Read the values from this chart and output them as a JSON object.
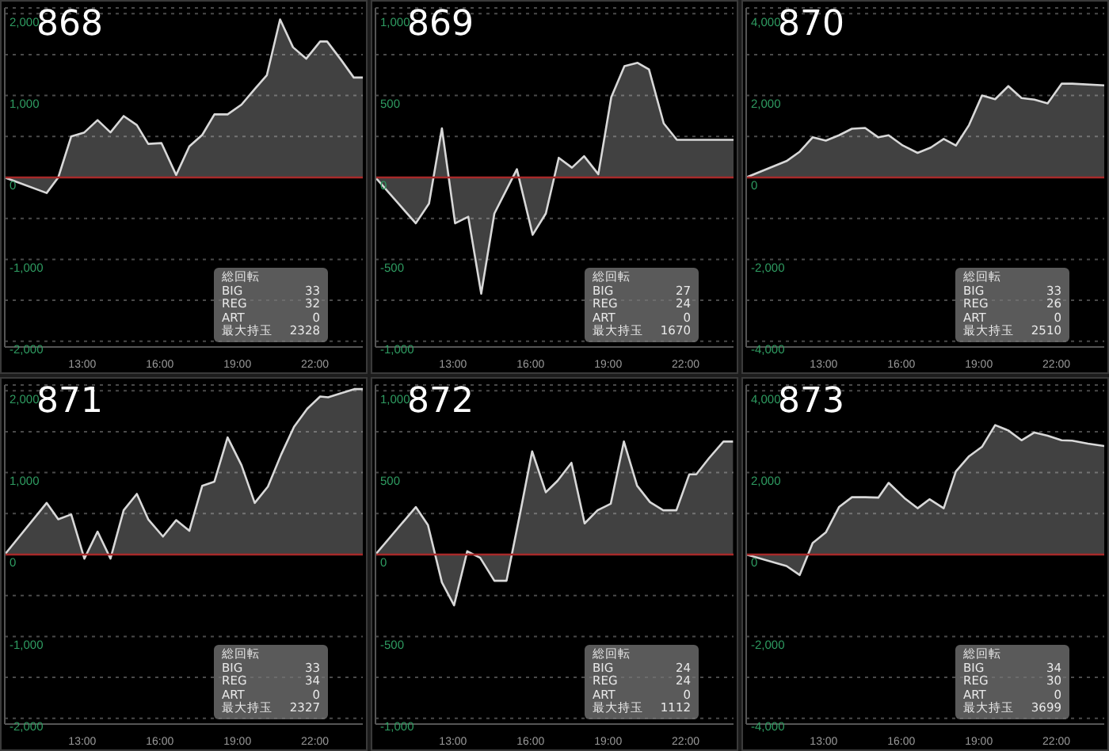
{
  "chart_data": [
    {
      "type": "area",
      "title": "868",
      "color": "#d8d8d8",
      "x": [
        10,
        11.62,
        12.07,
        12.57,
        13.08,
        13.59,
        14.09,
        14.6,
        15.11,
        15.55,
        16.06,
        16.63,
        17.14,
        17.64,
        18.11,
        18.62,
        19.16,
        19.67,
        20.14,
        20.65,
        21.15,
        21.66,
        22.2,
        22.47,
        23.0,
        23.5,
        23.85
      ],
      "values": [
        0,
        -190,
        0,
        500,
        550,
        700,
        550,
        750,
        640,
        410,
        420,
        30,
        380,
        520,
        770,
        770,
        890,
        1080,
        1250,
        1930,
        1590,
        1450,
        1660,
        1660,
        1440,
        1220,
        1220
      ],
      "xlim": [
        10,
        23.85
      ],
      "xticks": [
        {
          "value": 13,
          "label": "13:00"
        },
        {
          "value": 16,
          "label": "16:00"
        },
        {
          "value": 19,
          "label": "19:00"
        },
        {
          "value": 22,
          "label": "22:00"
        }
      ],
      "ylim": [
        -2070,
        2070
      ],
      "yticks": [
        {
          "value": 2000,
          "label": "2,000"
        },
        {
          "value": 1500,
          "label": null
        },
        {
          "value": 1000,
          "label": "1,000"
        },
        {
          "value": 500,
          "label": null
        },
        0,
        {
          "value": -500,
          "label": null
        },
        {
          "value": -1000,
          "label": "-1,000"
        },
        {
          "value": -1500,
          "label": null
        },
        {
          "value": -2000,
          "label": "-2,000"
        }
      ],
      "grid": "y",
      "ref_lines": [
        {
          "axis": "y",
          "value": 0,
          "color": "#a82a2a"
        }
      ],
      "annotations": [
        "総回転",
        "BIG 33",
        "REG 32",
        "ART 0",
        "最大持玉 2328"
      ]
    },
    {
      "type": "area",
      "title": "869",
      "color": "#d8d8d8",
      "x": [
        10,
        11.56,
        12.07,
        12.57,
        13.08,
        13.59,
        14.09,
        14.6,
        15.47,
        16.08,
        16.59,
        17.09,
        17.6,
        18.07,
        18.62,
        19.12,
        19.63,
        20.14,
        20.58,
        21.15,
        21.66,
        23.85
      ],
      "values": [
        0,
        -280,
        -160,
        300,
        -280,
        -240,
        -710,
        -220,
        50,
        -350,
        -220,
        120,
        60,
        130,
        20,
        490,
        680,
        700,
        660,
        330,
        230,
        230
      ],
      "xlim": [
        10,
        23.85
      ],
      "xticks": [
        {
          "value": 13,
          "label": "13:00"
        },
        {
          "value": 16,
          "label": "16:00"
        },
        {
          "value": 19,
          "label": "19:00"
        },
        {
          "value": 22,
          "label": "22:00"
        }
      ],
      "ylim": [
        -1035,
        1035
      ],
      "yticks": [
        {
          "value": 1000,
          "label": "1,000"
        },
        {
          "value": 750,
          "label": null
        },
        500,
        {
          "value": 250,
          "label": null
        },
        0,
        {
          "value": -250,
          "label": null
        },
        -500,
        {
          "value": -750,
          "label": null
        },
        {
          "value": -1000,
          "label": "-1,000"
        }
      ],
      "grid": "y",
      "ref_lines": [
        {
          "axis": "y",
          "value": 0,
          "color": "#a82a2a"
        }
      ],
      "annotations": [
        "総回転",
        "BIG 27",
        "REG 24",
        "ART 0",
        "最大持玉 1670"
      ]
    },
    {
      "type": "area",
      "title": "870",
      "color": "#d8d8d8",
      "x": [
        10,
        11.56,
        12.07,
        12.57,
        13.08,
        13.59,
        14.09,
        14.6,
        15.11,
        15.51,
        16.06,
        16.63,
        17.14,
        17.64,
        18.11,
        18.62,
        19.12,
        19.63,
        20.14,
        20.65,
        21.15,
        21.66,
        22.2,
        22.61,
        23.85
      ],
      "values": [
        0,
        400,
        630,
        980,
        900,
        1030,
        1190,
        1210,
        980,
        1030,
        780,
        600,
        730,
        940,
        780,
        1280,
        2000,
        1910,
        2230,
        1940,
        1900,
        1810,
        2290,
        2290,
        2250
      ],
      "xlim": [
        10,
        23.85
      ],
      "xticks": [
        {
          "value": 13,
          "label": "13:00"
        },
        {
          "value": 16,
          "label": "16:00"
        },
        {
          "value": 19,
          "label": "19:00"
        },
        {
          "value": 22,
          "label": "22:00"
        }
      ],
      "ylim": [
        -4140,
        4140
      ],
      "yticks": [
        {
          "value": 4000,
          "label": "4,000"
        },
        {
          "value": 3000,
          "label": null
        },
        {
          "value": 2000,
          "label": "2,000"
        },
        {
          "value": 1000,
          "label": null
        },
        0,
        {
          "value": -1000,
          "label": null
        },
        {
          "value": -2000,
          "label": "-2,000"
        },
        {
          "value": -3000,
          "label": null
        },
        {
          "value": -4000,
          "label": "-4,000"
        }
      ],
      "grid": "y",
      "ref_lines": [
        {
          "axis": "y",
          "value": 0,
          "color": "#a82a2a"
        }
      ],
      "annotations": [
        "総回転",
        "BIG 33",
        "REG 26",
        "ART 0",
        "最大持玉 2510"
      ]
    },
    {
      "type": "area",
      "title": "871",
      "color": "#d8d8d8",
      "x": [
        10,
        11.62,
        12.07,
        12.57,
        13.08,
        13.59,
        14.09,
        14.6,
        15.11,
        15.55,
        16.12,
        16.63,
        17.14,
        17.64,
        18.11,
        18.62,
        19.16,
        19.67,
        20.18,
        20.69,
        21.19,
        21.7,
        22.2,
        22.51,
        23.02,
        23.52,
        23.85
      ],
      "values": [
        0,
        630,
        430,
        490,
        -50,
        280,
        -50,
        540,
        740,
        430,
        220,
        420,
        290,
        840,
        890,
        1430,
        1090,
        630,
        830,
        1220,
        1560,
        1780,
        1930,
        1920,
        1970,
        2020,
        2020
      ],
      "xlim": [
        10,
        23.85
      ],
      "xticks": [
        {
          "value": 13,
          "label": "13:00"
        },
        {
          "value": 16,
          "label": "16:00"
        },
        {
          "value": 19,
          "label": "19:00"
        },
        {
          "value": 22,
          "label": "22:00"
        }
      ],
      "ylim": [
        -2070,
        2070
      ],
      "yticks": [
        {
          "value": 2000,
          "label": "2,000"
        },
        {
          "value": 1500,
          "label": null
        },
        {
          "value": 1000,
          "label": "1,000"
        },
        {
          "value": 500,
          "label": null
        },
        0,
        {
          "value": -500,
          "label": null
        },
        {
          "value": -1000,
          "label": "-1,000"
        },
        {
          "value": -1500,
          "label": null
        },
        {
          "value": -2000,
          "label": "-2,000"
        }
      ],
      "grid": "y",
      "ref_lines": [
        {
          "axis": "y",
          "value": 0,
          "color": "#a82a2a"
        }
      ],
      "annotations": [
        "総回転",
        "BIG 33",
        "REG 34",
        "ART 0",
        "最大持玉 2327"
      ]
    },
    {
      "type": "area",
      "title": "872",
      "color": "#d8d8d8",
      "x": [
        10,
        11.56,
        12.03,
        12.57,
        13.04,
        13.55,
        14.05,
        14.6,
        15.07,
        15.58,
        16.06,
        16.59,
        17.04,
        17.58,
        18.09,
        18.59,
        19.1,
        19.61,
        20.12,
        20.62,
        21.13,
        21.64,
        22.14,
        22.41,
        22.91,
        23.46,
        23.83
      ],
      "values": [
        0,
        290,
        180,
        -170,
        -310,
        20,
        -20,
        -160,
        -160,
        240,
        630,
        380,
        450,
        560,
        190,
        270,
        310,
        690,
        420,
        320,
        270,
        270,
        490,
        490,
        590,
        690,
        690
      ],
      "xlim": [
        10,
        23.85
      ],
      "xticks": [
        {
          "value": 13,
          "label": "13:00"
        },
        {
          "value": 16,
          "label": "16:00"
        },
        {
          "value": 19,
          "label": "19:00"
        },
        {
          "value": 22,
          "label": "22:00"
        }
      ],
      "ylim": [
        -1035,
        1035
      ],
      "yticks": [
        {
          "value": 1000,
          "label": "1,000"
        },
        {
          "value": 750,
          "label": null
        },
        500,
        {
          "value": 250,
          "label": null
        },
        0,
        {
          "value": -250,
          "label": null
        },
        -500,
        {
          "value": -750,
          "label": null
        },
        {
          "value": -1000,
          "label": "-1,000"
        }
      ],
      "grid": "y",
      "ref_lines": [
        {
          "axis": "y",
          "value": 0,
          "color": "#a82a2a"
        }
      ],
      "annotations": [
        "総回転",
        "BIG 24",
        "REG 24",
        "ART 0",
        "最大持玉 1112"
      ]
    },
    {
      "type": "area",
      "title": "873",
      "color": "#d8d8d8",
      "x": [
        10,
        11.56,
        12.07,
        12.57,
        13.08,
        13.59,
        14.09,
        14.6,
        15.11,
        15.51,
        16.12,
        16.63,
        17.09,
        17.64,
        18.11,
        18.62,
        19.12,
        19.63,
        20.14,
        20.65,
        21.15,
        21.66,
        22.2,
        22.61,
        23.22,
        23.85
      ],
      "values": [
        0,
        -280,
        -500,
        280,
        540,
        1160,
        1400,
        1400,
        1390,
        1750,
        1380,
        1130,
        1350,
        1130,
        2030,
        2400,
        2630,
        3160,
        3030,
        2790,
        2980,
        2900,
        2790,
        2780,
        2710,
        2650
      ],
      "xlim": [
        10,
        23.85
      ],
      "xticks": [
        {
          "value": 13,
          "label": "13:00"
        },
        {
          "value": 16,
          "label": "16:00"
        },
        {
          "value": 19,
          "label": "19:00"
        },
        {
          "value": 22,
          "label": "22:00"
        }
      ],
      "ylim": [
        -4140,
        4140
      ],
      "yticks": [
        {
          "value": 4000,
          "label": "4,000"
        },
        {
          "value": 3000,
          "label": null
        },
        {
          "value": 2000,
          "label": "2,000"
        },
        {
          "value": 1000,
          "label": null
        },
        0,
        {
          "value": -1000,
          "label": null
        },
        {
          "value": -2000,
          "label": "-2,000"
        },
        {
          "value": -3000,
          "label": null
        },
        {
          "value": -4000,
          "label": "-4,000"
        }
      ],
      "grid": "y",
      "ref_lines": [
        {
          "axis": "y",
          "value": 0,
          "color": "#a82a2a"
        }
      ],
      "annotations": [
        "総回転",
        "BIG 34",
        "REG 30",
        "ART 0",
        "最大持玉 3699"
      ]
    }
  ]
}
